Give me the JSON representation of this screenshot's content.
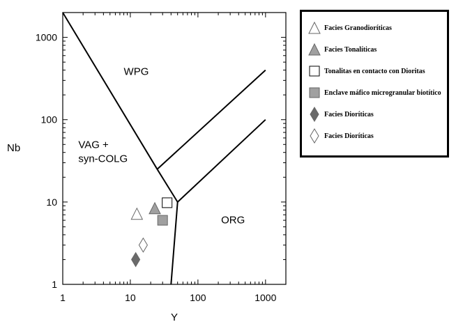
{
  "chart_data": {
    "type": "scatter",
    "xlabel": "Y",
    "ylabel": "Nb",
    "xscale": "log",
    "yscale": "log",
    "xlim": [
      1,
      2000
    ],
    "ylim": [
      1,
      2000
    ],
    "x_ticks": [
      {
        "value": 1,
        "label": "1"
      },
      {
        "value": 10,
        "label": "10"
      },
      {
        "value": 100,
        "label": "100"
      },
      {
        "value": 1000,
        "label": "1000"
      }
    ],
    "y_ticks": [
      {
        "value": 1,
        "label": "1"
      },
      {
        "value": 10,
        "label": "10"
      },
      {
        "value": 100,
        "label": "100"
      },
      {
        "value": 1000,
        "label": "1000"
      }
    ],
    "regions": [
      {
        "id": "wpg",
        "lines": [
          "WPG"
        ],
        "at": [
          8,
          350
        ]
      },
      {
        "id": "vag",
        "lines": [
          "VAG +",
          "syn-COLG"
        ],
        "at": [
          1.7,
          45
        ]
      },
      {
        "id": "org",
        "lines": [
          "ORG"
        ],
        "at": [
          220,
          5.5
        ]
      }
    ],
    "boundaries": [
      {
        "id": "vag-wpg",
        "points": [
          [
            1,
            2000
          ],
          [
            25,
            25
          ],
          [
            50,
            10
          ]
        ]
      },
      {
        "id": "vag-org",
        "points": [
          [
            50,
            10
          ],
          [
            40,
            1
          ]
        ]
      },
      {
        "id": "wpg-org",
        "points": [
          [
            50,
            10
          ],
          [
            1000,
            100
          ]
        ]
      },
      {
        "id": "wpg-split",
        "points": [
          [
            25,
            25
          ],
          [
            1000,
            400
          ]
        ]
      }
    ],
    "series": [
      {
        "name": "Facies Granodioríticas",
        "marker": "triangle-open",
        "points": [
          {
            "x": 12.5,
            "y": 7.2
          }
        ]
      },
      {
        "name": "Facies Tonalíticas",
        "marker": "triangle-gray",
        "points": [
          {
            "x": 23,
            "y": 8.4
          }
        ]
      },
      {
        "name": "Tonalitas en contacto con Dioritas",
        "marker": "square-open",
        "points": [
          {
            "x": 35,
            "y": 9.8
          }
        ]
      },
      {
        "name": "Enclave máfico microgranular biotítico",
        "marker": "square-gray",
        "points": [
          {
            "x": 30,
            "y": 6.0
          }
        ]
      },
      {
        "name": "Facies Dioríticas",
        "marker": "diamond-dark",
        "points": [
          {
            "x": 12,
            "y": 2.0
          }
        ]
      },
      {
        "name": "Facies Dioríticas",
        "marker": "diamond-open",
        "points": [
          {
            "x": 15.5,
            "y": 3.0
          }
        ]
      }
    ],
    "legend": {
      "placement": "right"
    },
    "colors": {
      "gray_fill": "#a0a0a0",
      "dark_fill": "#6a6a6a",
      "line": "#000000"
    }
  }
}
